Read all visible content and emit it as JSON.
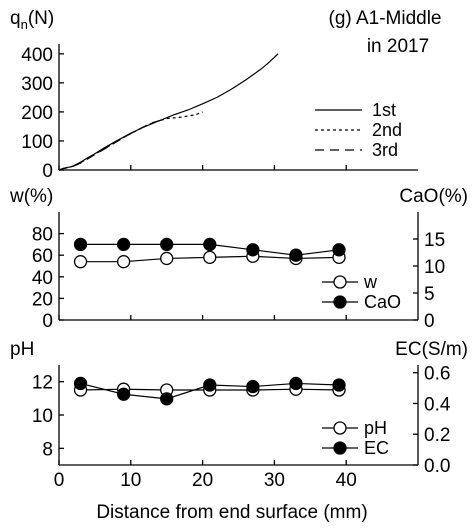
{
  "chart_data": [
    {
      "type": "line",
      "title": "(g) A1-Middle",
      "subtitle": "in 2017",
      "ylabel_base": "q",
      "ylabel_sub": "n",
      "ylabel_unit": "(N)",
      "xlim": [
        0,
        50
      ],
      "ylim": [
        0,
        420
      ],
      "yticks": [
        0,
        100,
        200,
        300,
        400
      ],
      "legend_position": "right",
      "series": [
        {
          "name": "1st",
          "dash": "solid",
          "x": [
            0,
            0.5,
            1,
            1.5,
            2,
            3,
            4,
            5,
            6,
            8,
            10,
            12,
            14,
            16,
            18,
            20,
            22,
            24,
            26,
            28,
            29,
            30,
            30.5
          ],
          "y": [
            0,
            5,
            8,
            10,
            14,
            27,
            42,
            56,
            72,
            100,
            127,
            150,
            170,
            190,
            207,
            228,
            250,
            278,
            310,
            345,
            365,
            388,
            400
          ]
        },
        {
          "name": "2nd",
          "dash": "dotted",
          "x": [
            0,
            1,
            2,
            3,
            5,
            7,
            9,
            11,
            13,
            15,
            17,
            19,
            20
          ],
          "y": [
            0,
            7,
            13,
            25,
            54,
            83,
            112,
            138,
            162,
            177,
            182,
            190,
            200
          ]
        },
        {
          "name": "3rd",
          "dash": "dashed",
          "x": [
            0,
            1,
            2,
            3,
            5,
            7,
            9,
            11,
            13,
            15
          ],
          "y": [
            0,
            7,
            13,
            24,
            53,
            82,
            112,
            139,
            163,
            177
          ]
        }
      ]
    },
    {
      "type": "line",
      "ylabel_left": "w(%)",
      "ylabel_right": "CaO(%)",
      "xlim": [
        0,
        50
      ],
      "ylim_left": [
        0,
        100
      ],
      "yticks_left": [
        0,
        20,
        40,
        60,
        80
      ],
      "ylim_right": [
        0,
        20
      ],
      "yticks_right": [
        0,
        5,
        10,
        15
      ],
      "legend_position": "bottom-right",
      "series": [
        {
          "name": "w",
          "marker": "open-circle",
          "axis": "left",
          "x": [
            3,
            9,
            15,
            21,
            27,
            33,
            39
          ],
          "y": [
            54,
            54,
            57,
            58,
            59,
            57,
            58
          ]
        },
        {
          "name": "CaO",
          "marker": "filled-circle",
          "axis": "right",
          "x": [
            3,
            9,
            15,
            21,
            27,
            33,
            39
          ],
          "y": [
            14,
            14,
            14,
            14,
            13,
            12,
            13
          ]
        }
      ]
    },
    {
      "type": "line",
      "ylabel_left": "pH",
      "ylabel_right": "EC(S/m)",
      "xlabel": "Distance from end surface (mm)",
      "xlim": [
        0,
        50
      ],
      "xticks": [
        0,
        10,
        20,
        30,
        40
      ],
      "ylim_left": [
        7,
        13
      ],
      "yticks_left": [
        8,
        10,
        12
      ],
      "ylim_right": [
        0,
        0.65
      ],
      "yticks_right": [
        "0.0",
        "0.2",
        "0.4",
        "0.6"
      ],
      "legend_position": "bottom-right",
      "series": [
        {
          "name": "pH",
          "marker": "open-circle",
          "axis": "left",
          "x": [
            3,
            9,
            15,
            21,
            27,
            33,
            39
          ],
          "y": [
            11.5,
            11.55,
            11.5,
            11.5,
            11.5,
            11.55,
            11.5
          ]
        },
        {
          "name": "EC",
          "marker": "filled-circle",
          "axis": "right",
          "x": [
            3,
            9,
            15,
            21,
            27,
            33,
            39
          ],
          "y": [
            0.53,
            0.46,
            0.43,
            0.52,
            0.51,
            0.53,
            0.52
          ]
        }
      ]
    }
  ]
}
